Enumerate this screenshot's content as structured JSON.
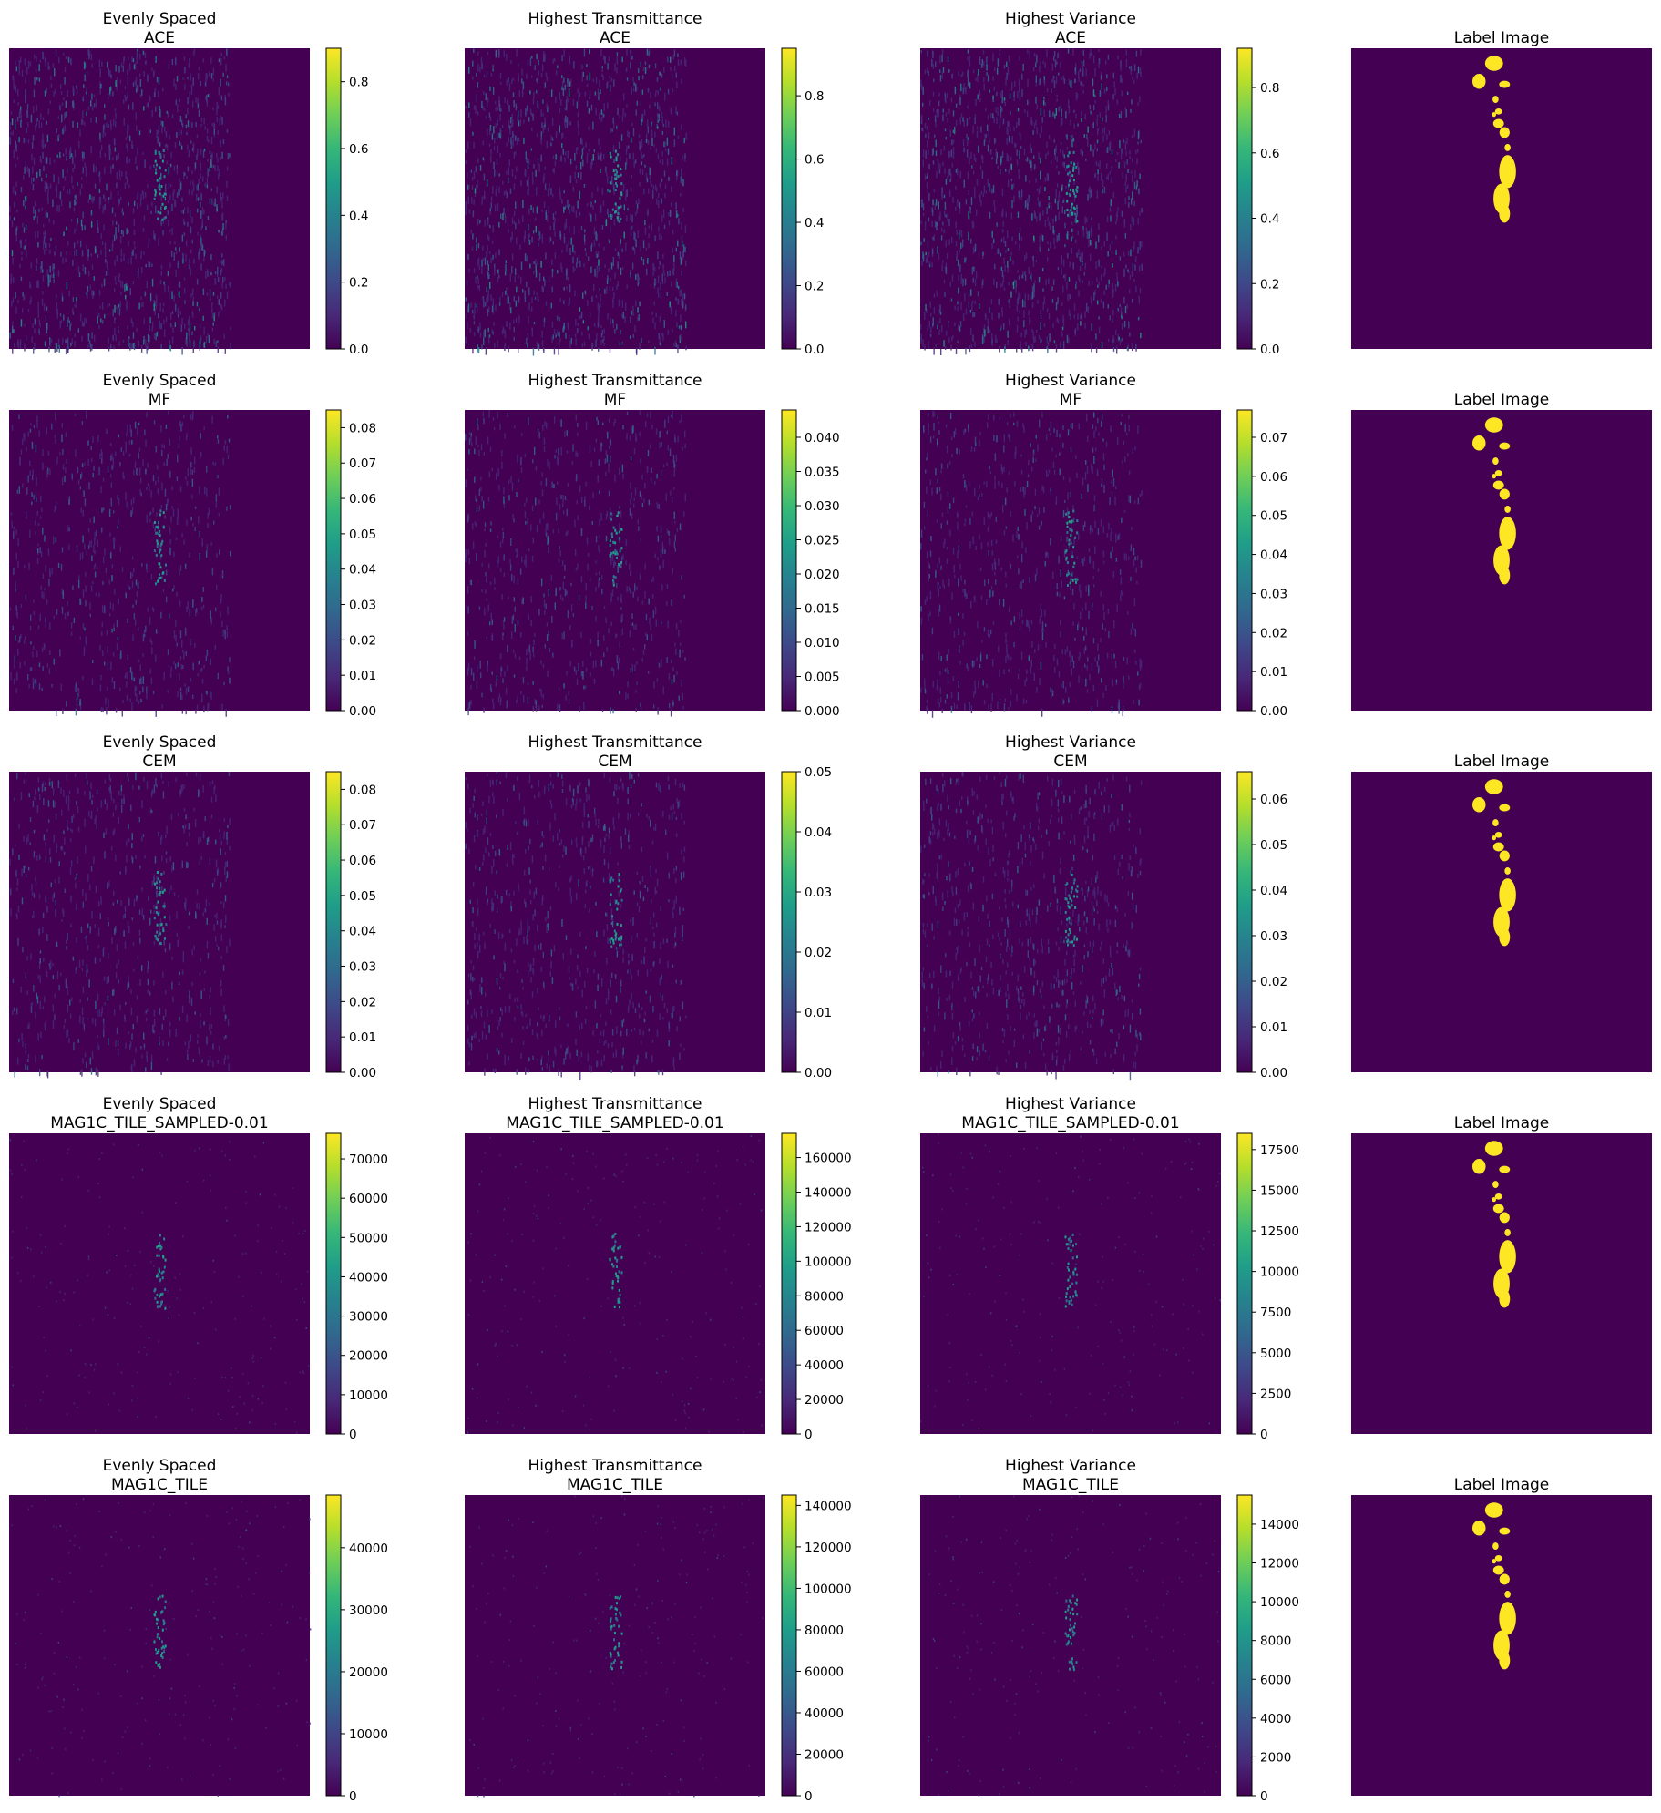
{
  "colormap": "viridis",
  "colors": {
    "background": "#440154",
    "label_fill": "#fde725",
    "viridis_stops": [
      "#440154",
      "#482878",
      "#3e4989",
      "#31688e",
      "#26828e",
      "#1f9e89",
      "#35b779",
      "#6ece58",
      "#b5de2b",
      "#fde725"
    ]
  },
  "row_titles": [
    "Evenly Spaced",
    "Highest Transmittance",
    "Highest Variance"
  ],
  "label_title": "Label Image",
  "chart_data": [
    {
      "type": "heatmap",
      "row_method": "ACE",
      "columns": [
        "Evenly Spaced",
        "Highest Transmittance",
        "Highest Variance",
        "Label Image"
      ],
      "panels": [
        {
          "title": [
            "Evenly Spaced",
            "ACE"
          ],
          "colorbar": {
            "min": 0,
            "max": 0.9,
            "ticks": [
              "0.0",
              "0.2",
              "0.4",
              "0.6",
              "0.8"
            ],
            "tick_values": [
              0,
              0.2,
              0.4,
              0.6,
              0.8
            ]
          }
        },
        {
          "title": [
            "Highest Transmittance",
            "ACE"
          ],
          "colorbar": {
            "min": 0,
            "max": 0.95,
            "ticks": [
              "0.0",
              "0.2",
              "0.4",
              "0.6",
              "0.8"
            ],
            "tick_values": [
              0,
              0.2,
              0.4,
              0.6,
              0.8
            ]
          }
        },
        {
          "title": [
            "Highest Variance",
            "ACE"
          ],
          "colorbar": {
            "min": 0,
            "max": 0.92,
            "ticks": [
              "0.0",
              "0.2",
              "0.4",
              "0.6",
              "0.8"
            ],
            "tick_values": [
              0,
              0.2,
              0.4,
              0.6,
              0.8
            ]
          }
        },
        {
          "title": [
            "Label Image"
          ]
        }
      ]
    },
    {
      "type": "heatmap",
      "row_method": "MF",
      "columns": [
        "Evenly Spaced",
        "Highest Transmittance",
        "Highest Variance",
        "Label Image"
      ],
      "panels": [
        {
          "title": [
            "Evenly Spaced",
            "MF"
          ],
          "colorbar": {
            "min": 0,
            "max": 0.085,
            "ticks": [
              "0.00",
              "0.01",
              "0.02",
              "0.03",
              "0.04",
              "0.05",
              "0.06",
              "0.07",
              "0.08"
            ],
            "tick_values": [
              0,
              0.01,
              0.02,
              0.03,
              0.04,
              0.05,
              0.06,
              0.07,
              0.08
            ]
          }
        },
        {
          "title": [
            "Highest Transmittance",
            "MF"
          ],
          "colorbar": {
            "min": 0,
            "max": 0.044,
            "ticks": [
              "0.000",
              "0.005",
              "0.010",
              "0.015",
              "0.020",
              "0.025",
              "0.030",
              "0.035",
              "0.040"
            ],
            "tick_values": [
              0,
              0.005,
              0.01,
              0.015,
              0.02,
              0.025,
              0.03,
              0.035,
              0.04
            ]
          }
        },
        {
          "title": [
            "Highest Variance",
            "MF"
          ],
          "colorbar": {
            "min": 0,
            "max": 0.077,
            "ticks": [
              "0.00",
              "0.01",
              "0.02",
              "0.03",
              "0.04",
              "0.05",
              "0.06",
              "0.07"
            ],
            "tick_values": [
              0,
              0.01,
              0.02,
              0.03,
              0.04,
              0.05,
              0.06,
              0.07
            ]
          }
        },
        {
          "title": [
            "Label Image"
          ]
        }
      ]
    },
    {
      "type": "heatmap",
      "row_method": "CEM",
      "columns": [
        "Evenly Spaced",
        "Highest Transmittance",
        "Highest Variance",
        "Label Image"
      ],
      "panels": [
        {
          "title": [
            "Evenly Spaced",
            "CEM"
          ],
          "colorbar": {
            "min": 0,
            "max": 0.085,
            "ticks": [
              "0.00",
              "0.01",
              "0.02",
              "0.03",
              "0.04",
              "0.05",
              "0.06",
              "0.07",
              "0.08"
            ],
            "tick_values": [
              0,
              0.01,
              0.02,
              0.03,
              0.04,
              0.05,
              0.06,
              0.07,
              0.08
            ]
          }
        },
        {
          "title": [
            "Highest Transmittance",
            "CEM"
          ],
          "colorbar": {
            "min": 0,
            "max": 0.05,
            "ticks": [
              "0.00",
              "0.01",
              "0.02",
              "0.03",
              "0.04",
              "0.05"
            ],
            "tick_values": [
              0,
              0.01,
              0.02,
              0.03,
              0.04,
              0.05
            ]
          }
        },
        {
          "title": [
            "Highest Variance",
            "CEM"
          ],
          "colorbar": {
            "min": 0,
            "max": 0.066,
            "ticks": [
              "0.00",
              "0.01",
              "0.02",
              "0.03",
              "0.04",
              "0.05",
              "0.06"
            ],
            "tick_values": [
              0,
              0.01,
              0.02,
              0.03,
              0.04,
              0.05,
              0.06
            ]
          }
        },
        {
          "title": [
            "Label Image"
          ]
        }
      ]
    },
    {
      "type": "heatmap",
      "row_method": "MAG1C_TILE_SAMPLED-0.01",
      "columns": [
        "Evenly Spaced",
        "Highest Transmittance",
        "Highest Variance",
        "Label Image"
      ],
      "panels": [
        {
          "title": [
            "Evenly Spaced",
            "MAG1C_TILE_SAMPLED-0.01"
          ],
          "colorbar": {
            "min": 0,
            "max": 76500,
            "ticks": [
              "0",
              "10000",
              "20000",
              "30000",
              "40000",
              "50000",
              "60000",
              "70000"
            ],
            "tick_values": [
              0,
              10000,
              20000,
              30000,
              40000,
              50000,
              60000,
              70000
            ]
          }
        },
        {
          "title": [
            "Highest Transmittance",
            "MAG1C_TILE_SAMPLED-0.01"
          ],
          "colorbar": {
            "min": 0,
            "max": 174000,
            "ticks": [
              "0",
              "20000",
              "40000",
              "60000",
              "80000",
              "100000",
              "120000",
              "140000",
              "160000"
            ],
            "tick_values": [
              0,
              20000,
              40000,
              60000,
              80000,
              100000,
              120000,
              140000,
              160000
            ]
          }
        },
        {
          "title": [
            "Highest Variance",
            "MAG1C_TILE_SAMPLED-0.01"
          ],
          "colorbar": {
            "min": 0,
            "max": 18500,
            "ticks": [
              "0",
              "2500",
              "5000",
              "7500",
              "10000",
              "12500",
              "15000",
              "17500"
            ],
            "tick_values": [
              0,
              2500,
              5000,
              7500,
              10000,
              12500,
              15000,
              17500
            ]
          }
        },
        {
          "title": [
            "Label Image"
          ]
        }
      ]
    },
    {
      "type": "heatmap",
      "row_method": "MAG1C_TILE",
      "columns": [
        "Evenly Spaced",
        "Highest Transmittance",
        "Highest Variance",
        "Label Image"
      ],
      "panels": [
        {
          "title": [
            "Evenly Spaced",
            "MAG1C_TILE"
          ],
          "colorbar": {
            "min": 0,
            "max": 48500,
            "ticks": [
              "0",
              "10000",
              "20000",
              "30000",
              "40000"
            ],
            "tick_values": [
              0,
              10000,
              20000,
              30000,
              40000
            ]
          }
        },
        {
          "title": [
            "Highest Transmittance",
            "MAG1C_TILE"
          ],
          "colorbar": {
            "min": 0,
            "max": 145000,
            "ticks": [
              "0",
              "20000",
              "40000",
              "60000",
              "80000",
              "100000",
              "120000",
              "140000"
            ],
            "tick_values": [
              0,
              20000,
              40000,
              60000,
              80000,
              100000,
              120000,
              140000
            ]
          }
        },
        {
          "title": [
            "Highest Variance",
            "MAG1C_TILE"
          ],
          "colorbar": {
            "min": 0,
            "max": 15500,
            "ticks": [
              "0",
              "2000",
              "4000",
              "6000",
              "8000",
              "10000",
              "12000",
              "14000"
            ],
            "tick_values": [
              0,
              2000,
              4000,
              6000,
              8000,
              10000,
              12000,
              14000
            ]
          }
        },
        {
          "title": [
            "Label Image"
          ]
        }
      ]
    }
  ]
}
